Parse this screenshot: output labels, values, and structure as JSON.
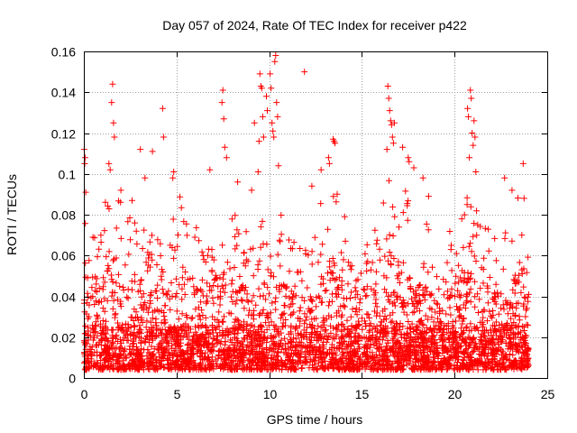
{
  "chart_data": {
    "type": "scatter",
    "title": "Day 057 of 2024, Rate Of TEC Index for receiver p422",
    "xlabel": "GPS time / hours",
    "ylabel": "ROTI / TECUs",
    "xlim": [
      0,
      25
    ],
    "ylim": [
      0,
      0.16
    ],
    "x_ticks": [
      0,
      5,
      10,
      15,
      20,
      25
    ],
    "x_tick_labels": [
      "0",
      "5",
      "10",
      "15",
      "20",
      "25"
    ],
    "y_ticks": [
      0,
      0.02,
      0.04,
      0.06,
      0.08,
      0.1,
      0.12,
      0.14,
      0.16
    ],
    "y_tick_labels": [
      "0",
      "0.02",
      "0.04",
      "0.06",
      "0.08",
      "0.1",
      "0.12",
      "0.14",
      "0.16"
    ],
    "grid": true,
    "marker": "+",
    "color": "#ff0000",
    "data_range": [
      0,
      24
    ],
    "series": [
      {
        "name": "ROTI",
        "envelope_x": [
          0,
          0.5,
          1,
          1.5,
          2,
          2.5,
          3,
          3.5,
          4,
          4.5,
          5,
          5.5,
          6,
          6.5,
          7,
          7.5,
          8,
          8.5,
          9,
          9.5,
          10,
          10.5,
          11,
          11.5,
          12,
          12.5,
          13,
          13.5,
          14,
          14.5,
          15,
          15.5,
          16,
          16.5,
          17,
          17.5,
          18,
          18.5,
          19,
          19.5,
          20,
          20.5,
          21,
          21.5,
          22,
          22.5,
          23,
          23.5,
          24
        ],
        "envelope_max": [
          0.07,
          0.06,
          0.07,
          0.09,
          0.08,
          0.07,
          0.07,
          0.06,
          0.07,
          0.06,
          0.08,
          0.08,
          0.07,
          0.06,
          0.07,
          0.08,
          0.07,
          0.07,
          0.06,
          0.07,
          0.08,
          0.07,
          0.07,
          0.06,
          0.06,
          0.07,
          0.08,
          0.09,
          0.07,
          0.07,
          0.06,
          0.06,
          0.07,
          0.09,
          0.09,
          0.08,
          0.07,
          0.07,
          0.05,
          0.06,
          0.07,
          0.08,
          0.08,
          0.07,
          0.06,
          0.06,
          0.07,
          0.08,
          0.05
        ],
        "outliers": [
          [
            0.02,
            0.112
          ],
          [
            0.05,
            0.105
          ],
          [
            0.1,
            0.091
          ],
          [
            0.07,
            0.108
          ],
          [
            1.35,
            0.105
          ],
          [
            1.42,
            0.102
          ],
          [
            1.5,
            0.135
          ],
          [
            1.55,
            0.144
          ],
          [
            1.6,
            0.125
          ],
          [
            1.65,
            0.118
          ],
          [
            2.0,
            0.092
          ],
          [
            2.6,
            0.087
          ],
          [
            3.05,
            0.112
          ],
          [
            3.3,
            0.098
          ],
          [
            3.7,
            0.111
          ],
          [
            4.25,
            0.132
          ],
          [
            4.3,
            0.118
          ],
          [
            4.8,
            0.098
          ],
          [
            4.85,
            0.101
          ],
          [
            6.8,
            0.102
          ],
          [
            7.5,
            0.141
          ],
          [
            7.55,
            0.127
          ],
          [
            7.6,
            0.113
          ],
          [
            7.45,
            0.135
          ],
          [
            7.7,
            0.108
          ],
          [
            8.3,
            0.096
          ],
          [
            9.05,
            0.092
          ],
          [
            9.2,
            0.125
          ],
          [
            9.5,
            0.149
          ],
          [
            9.55,
            0.143
          ],
          [
            9.6,
            0.142
          ],
          [
            9.65,
            0.128
          ],
          [
            9.7,
            0.118
          ],
          [
            9.85,
            0.138
          ],
          [
            9.9,
            0.131
          ],
          [
            10.05,
            0.149
          ],
          [
            10.1,
            0.142
          ],
          [
            10.15,
            0.125
          ],
          [
            10.2,
            0.121
          ],
          [
            10.25,
            0.118
          ],
          [
            10.3,
            0.155
          ],
          [
            10.35,
            0.158
          ],
          [
            10.4,
            0.135
          ],
          [
            10.45,
            0.128
          ],
          [
            10.5,
            0.104
          ],
          [
            9.45,
            0.116
          ],
          [
            9.4,
            0.101
          ],
          [
            11.9,
            0.15
          ],
          [
            12.3,
            0.094
          ],
          [
            12.8,
            0.102
          ],
          [
            13.2,
            0.108
          ],
          [
            13.25,
            0.105
          ],
          [
            13.45,
            0.117
          ],
          [
            13.5,
            0.116
          ],
          [
            13.55,
            0.115
          ],
          [
            16.4,
            0.143
          ],
          [
            16.45,
            0.137
          ],
          [
            16.5,
            0.131
          ],
          [
            16.55,
            0.126
          ],
          [
            16.6,
            0.124
          ],
          [
            16.65,
            0.118
          ],
          [
            16.7,
            0.115
          ],
          [
            16.75,
            0.125
          ],
          [
            16.35,
            0.112
          ],
          [
            17.2,
            0.113
          ],
          [
            17.5,
            0.108
          ],
          [
            17.55,
            0.106
          ],
          [
            17.8,
            0.103
          ],
          [
            18.3,
            0.098
          ],
          [
            18.6,
            0.089
          ],
          [
            20.7,
            0.132
          ],
          [
            20.75,
            0.128
          ],
          [
            20.85,
            0.141
          ],
          [
            20.9,
            0.137
          ],
          [
            20.95,
            0.12
          ],
          [
            21.0,
            0.114
          ],
          [
            21.05,
            0.126
          ],
          [
            21.1,
            0.118
          ],
          [
            20.8,
            0.108
          ],
          [
            21.15,
            0.101
          ],
          [
            22.7,
            0.098
          ],
          [
            23.1,
            0.092
          ],
          [
            23.7,
            0.105
          ],
          [
            23.75,
            0.088
          ]
        ]
      }
    ]
  }
}
